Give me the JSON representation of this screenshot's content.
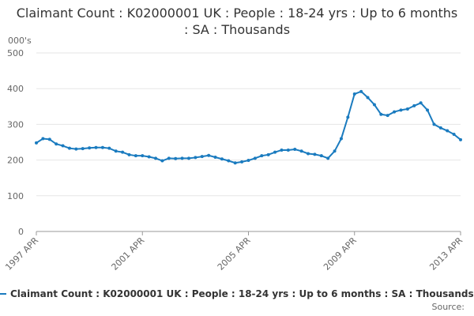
{
  "chart_data": {
    "type": "line",
    "title": "Claimant Count : K02000001 UK : People : 18-24 yrs : Up to 6 months : SA : Thousands",
    "y_axis_label": "000's",
    "source_label": "Source:",
    "categories": [
      "1997 APR",
      null,
      null,
      null,
      null,
      null,
      null,
      null,
      null,
      null,
      null,
      null,
      null,
      null,
      null,
      null,
      "2001 APR",
      null,
      null,
      null,
      null,
      null,
      null,
      null,
      null,
      null,
      null,
      null,
      null,
      null,
      null,
      null,
      "2005 APR",
      null,
      null,
      null,
      null,
      null,
      null,
      null,
      null,
      null,
      null,
      null,
      null,
      null,
      null,
      null,
      "2009 APR",
      null,
      null,
      null,
      null,
      null,
      null,
      null,
      null,
      null,
      null,
      null,
      null,
      null,
      null,
      null,
      "2013 APR"
    ],
    "series": [
      {
        "name": "Claimant Count : K02000001 UK : People : 18-24 yrs : Up to 6 months : SA : Thousands",
        "color": "#1a7bbf",
        "values": [
          248,
          260,
          258,
          245,
          240,
          233,
          231,
          232,
          234,
          235,
          235,
          233,
          225,
          222,
          215,
          212,
          212,
          209,
          205,
          198,
          205,
          204,
          205,
          205,
          207,
          210,
          213,
          208,
          203,
          198,
          192,
          195,
          199,
          205,
          212,
          215,
          222,
          228,
          228,
          230,
          225,
          218,
          216,
          212,
          205,
          225,
          260,
          320,
          385,
          392,
          375,
          355,
          328,
          325,
          335,
          340,
          343,
          352,
          360,
          340,
          300,
          290,
          282,
          272,
          257
        ]
      }
    ],
    "ylim": [
      0,
      500
    ],
    "yticks": [
      0,
      100,
      200,
      300,
      400,
      500
    ],
    "grid": true
  }
}
